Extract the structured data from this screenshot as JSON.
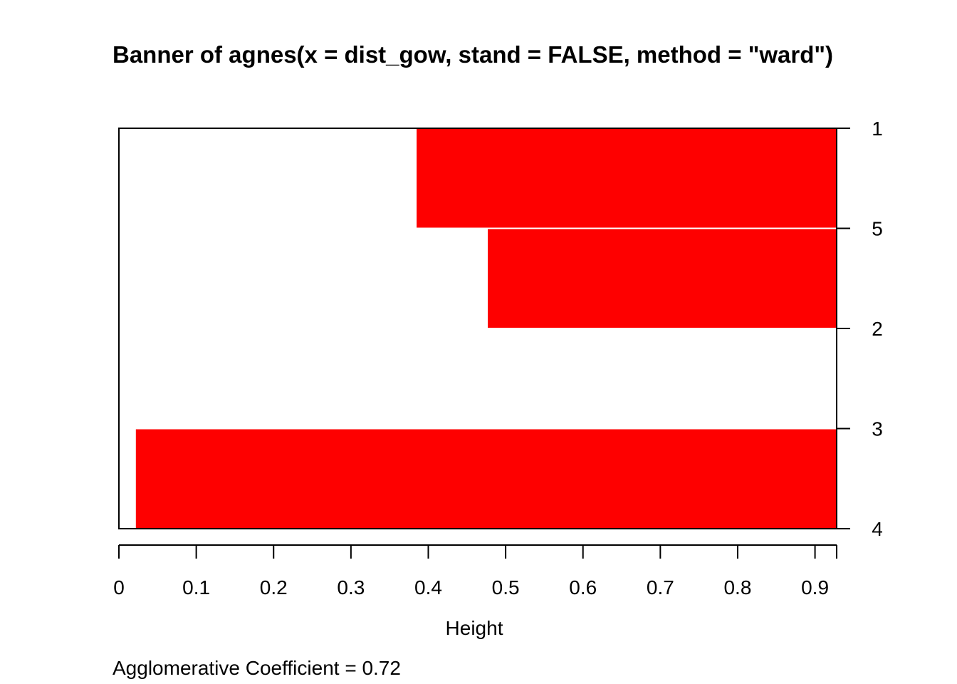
{
  "chart_data": {
    "type": "bar",
    "orientation": "horizontal",
    "title": "Banner of  agnes(x = dist_gow, stand = FALSE, method = \"ward\")",
    "xlabel": "Height",
    "ylabel": "",
    "xlim": [
      0,
      0.928
    ],
    "x_ticks": [
      0,
      0.1,
      0.2,
      0.3,
      0.4,
      0.5,
      0.6,
      0.7,
      0.8,
      0.9
    ],
    "x_tick_labels": [
      "0",
      "0.1",
      "0.2",
      "0.3",
      "0.4",
      "0.5",
      "0.6",
      "0.7",
      "0.8",
      "0.9"
    ],
    "order": [
      "1",
      "5",
      "2",
      "3",
      "4"
    ],
    "merge_heights": [
      0.384,
      0.476,
      null,
      0.021
    ],
    "bar_color": "#fe0000",
    "footer": "Agglomerative Coefficient =  0.72"
  }
}
